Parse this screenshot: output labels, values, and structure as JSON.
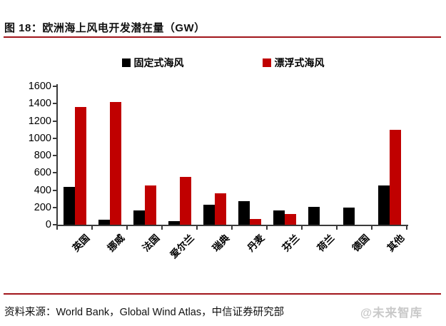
{
  "figure": {
    "title": "图 18：欧洲海上风电开发潜在量（GW）",
    "source": "资料来源：World Bank，Global Wind Atlas，中信证券研究部",
    "watermark": "@未来智库"
  },
  "colors": {
    "rule": "#A1151B",
    "axis": "#3a3a3a",
    "bar_black": "#000000",
    "bar_red": "#C00000",
    "watermark": "#c9c9c9"
  },
  "chart_data": {
    "type": "bar",
    "title": "欧洲海上风电开发潜在量（GW）",
    "categories": [
      "英国",
      "挪威",
      "法国",
      "爱尔兰",
      "瑞典",
      "丹麦",
      "芬兰",
      "荷兰",
      "德国",
      "其他"
    ],
    "series": [
      {
        "name": "固定式海风",
        "color": "#000000",
        "values": [
          435,
          55,
          165,
          45,
          230,
          270,
          165,
          205,
          200,
          455
        ]
      },
      {
        "name": "漂浮式海风",
        "color": "#C00000",
        "values": [
          1360,
          1420,
          455,
          555,
          360,
          70,
          125,
          0,
          0,
          1095
        ]
      }
    ],
    "xlabel": "",
    "ylabel": "",
    "ylim": [
      0,
      1600
    ],
    "ytick_step": 200,
    "yticks": [
      "0",
      "200",
      "400",
      "600",
      "800",
      "1000",
      "1200",
      "1400",
      "1600"
    ],
    "grid": false,
    "legend_position": "top-center"
  }
}
